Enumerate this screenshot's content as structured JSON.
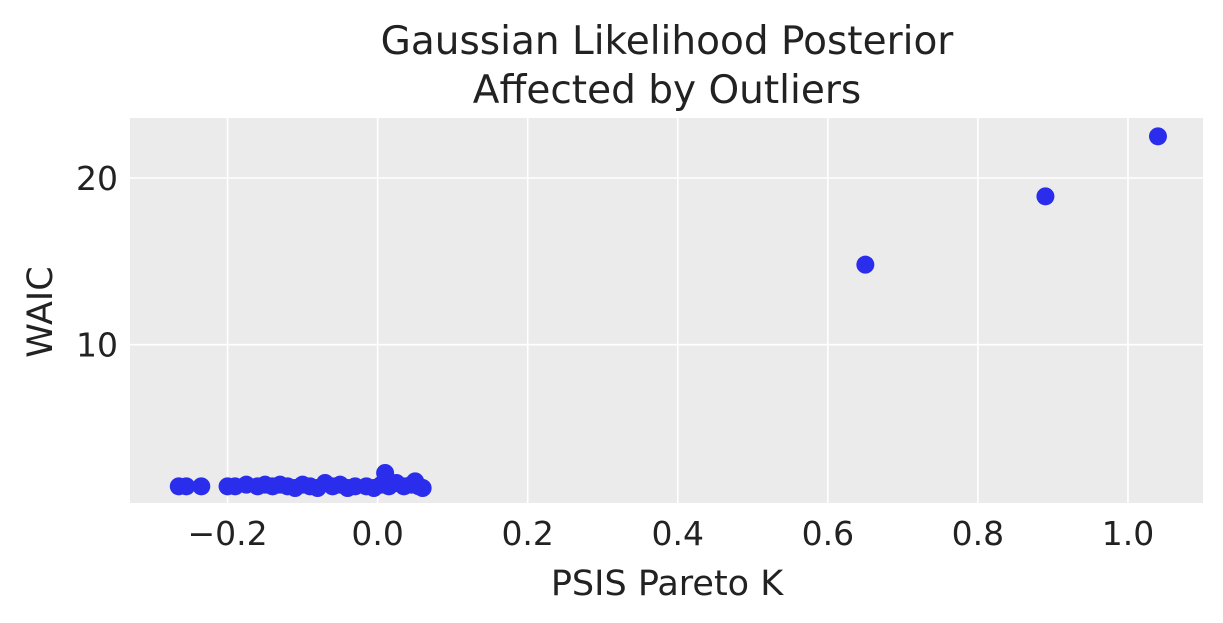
{
  "chart_data": {
    "type": "scatter",
    "title": [
      "Gaussian Likelihood Posterior",
      "Affected by Outliers"
    ],
    "xlabel": "PSIS Pareto K",
    "ylabel": "WAIC",
    "xlim": [
      -0.33,
      1.1
    ],
    "ylim": [
      0.5,
      23.6
    ],
    "xticks": [
      -0.2,
      0.0,
      0.2,
      0.4,
      0.6,
      0.8,
      1.0
    ],
    "xtick_labels": [
      "−0.2",
      "0.0",
      "0.2",
      "0.4",
      "0.6",
      "0.8",
      "1.0"
    ],
    "yticks": [
      10,
      20
    ],
    "ytick_labels": [
      "10",
      "20"
    ],
    "grid": true,
    "background_color": "#ebebeb",
    "grid_color": "#ffffff",
    "marker_color": "#2a2eec",
    "points": [
      {
        "x": -0.265,
        "y": 1.5
      },
      {
        "x": -0.255,
        "y": 1.5
      },
      {
        "x": -0.235,
        "y": 1.5
      },
      {
        "x": -0.2,
        "y": 1.5
      },
      {
        "x": -0.19,
        "y": 1.5
      },
      {
        "x": -0.175,
        "y": 1.6
      },
      {
        "x": -0.16,
        "y": 1.5
      },
      {
        "x": -0.15,
        "y": 1.6
      },
      {
        "x": -0.14,
        "y": 1.5
      },
      {
        "x": -0.13,
        "y": 1.6
      },
      {
        "x": -0.12,
        "y": 1.5
      },
      {
        "x": -0.11,
        "y": 1.4
      },
      {
        "x": -0.1,
        "y": 1.6
      },
      {
        "x": -0.09,
        "y": 1.5
      },
      {
        "x": -0.08,
        "y": 1.4
      },
      {
        "x": -0.07,
        "y": 1.7
      },
      {
        "x": -0.06,
        "y": 1.5
      },
      {
        "x": -0.05,
        "y": 1.6
      },
      {
        "x": -0.04,
        "y": 1.4
      },
      {
        "x": -0.03,
        "y": 1.5
      },
      {
        "x": -0.015,
        "y": 1.5
      },
      {
        "x": -0.005,
        "y": 1.4
      },
      {
        "x": 0.005,
        "y": 1.6
      },
      {
        "x": 0.01,
        "y": 2.3
      },
      {
        "x": 0.015,
        "y": 1.5
      },
      {
        "x": 0.025,
        "y": 1.7
      },
      {
        "x": 0.035,
        "y": 1.5
      },
      {
        "x": 0.045,
        "y": 1.6
      },
      {
        "x": 0.05,
        "y": 1.8
      },
      {
        "x": 0.055,
        "y": 1.5
      },
      {
        "x": 0.06,
        "y": 1.4
      },
      {
        "x": 0.65,
        "y": 14.8
      },
      {
        "x": 0.89,
        "y": 18.9
      },
      {
        "x": 1.04,
        "y": 22.5
      }
    ]
  }
}
